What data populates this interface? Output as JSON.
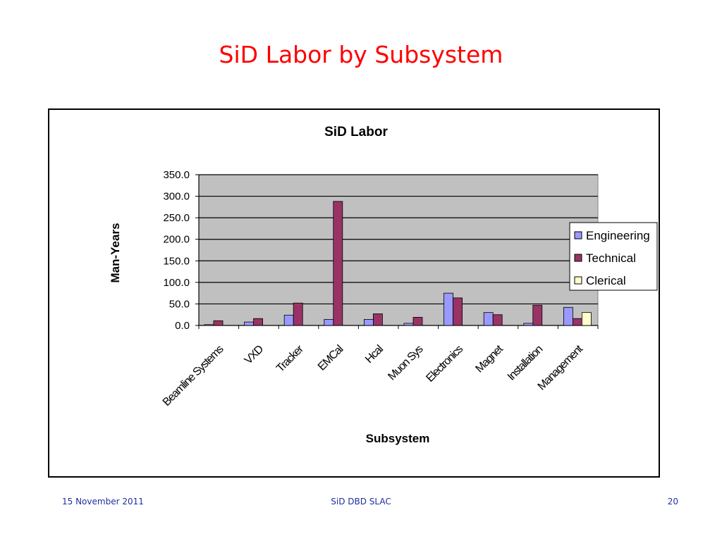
{
  "slide": {
    "title": "SiD Labor by Subsystem",
    "footer_date": "15 November 2011",
    "footer_center": "SiD  DBD SLAC",
    "page_number": "20"
  },
  "colors": {
    "title": "#ff0000",
    "footer": "#1f2fa0",
    "plot_background": "#c0c0c0",
    "gridline": "#000000",
    "engineering": "#9999ff",
    "technical": "#993366",
    "clerical": "#ffffcc"
  },
  "chart_data": {
    "type": "bar",
    "title": "SiD Labor",
    "xlabel": "Subsystem",
    "ylabel": "Man-Years",
    "ylim": [
      0,
      350
    ],
    "yticks": [
      "0.0",
      "50.0",
      "100.0",
      "150.0",
      "200.0",
      "250.0",
      "300.0",
      "350.0"
    ],
    "grid": true,
    "legend_position": "right",
    "categories": [
      "Beamline Systems",
      "VXD",
      "Tracker",
      "EMCal",
      "Hcal",
      "Muon Sys",
      "Electronics",
      "Magnet",
      "Installation",
      "Management"
    ],
    "series": [
      {
        "name": "Engineering",
        "color": "#9999ff",
        "values": [
          2,
          8,
          24,
          14,
          14,
          5,
          75,
          30,
          5,
          42
        ]
      },
      {
        "name": "Technical",
        "color": "#993366",
        "values": [
          11,
          16,
          52,
          288,
          27,
          19,
          64,
          25,
          47,
          16
        ]
      },
      {
        "name": "Clerical",
        "color": "#ffffcc",
        "values": [
          0,
          0,
          0,
          0,
          0,
          0,
          0,
          0,
          0,
          30
        ]
      }
    ]
  }
}
